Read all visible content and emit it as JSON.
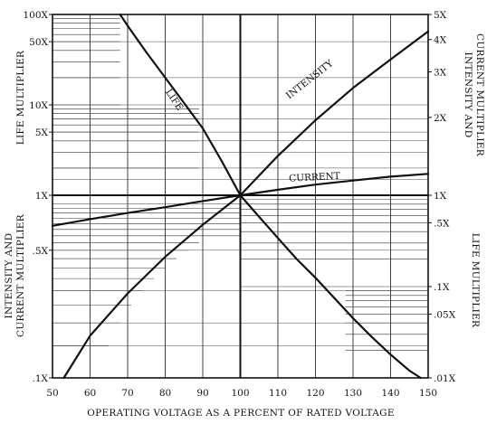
{
  "chart_data": {
    "type": "line",
    "title": "",
    "xlabel": "OPERATING VOLTAGE AS A PERCENT OF RATED VOLTAGE",
    "xlim": [
      50,
      150
    ],
    "x_ticks": [
      "50",
      "60",
      "70",
      "80",
      "90",
      "100",
      "110",
      "120",
      "130",
      "140",
      "150"
    ],
    "left_upper_axis": {
      "title": "LIFE MULTIPLIER",
      "ticks": [
        {
          "label": "100X",
          "value": 100
        },
        {
          "label": "50X",
          "value": 50
        },
        {
          "label": "10X",
          "value": 10
        },
        {
          "label": "5X",
          "value": 5
        },
        {
          "label": "1X",
          "value": 1
        }
      ]
    },
    "left_lower_axis": {
      "title_line1": "INTENSITY AND",
      "title_line2": "CURRENT MULTIPLIER",
      "ticks": [
        {
          "label": ".5X",
          "value": 0.5
        },
        {
          "label": ".1X",
          "value": 0.1
        }
      ]
    },
    "right_upper_axis": {
      "title_line1": "INTENSITY AND",
      "title_line2": "CURRENT MULTIPLIER",
      "ticks": [
        {
          "label": "5X",
          "value": 5
        },
        {
          "label": "4X",
          "value": 4
        },
        {
          "label": "3X",
          "value": 3
        },
        {
          "label": "2X",
          "value": 2
        },
        {
          "label": "1X",
          "value": 1
        }
      ]
    },
    "right_lower_axis": {
      "title": "LIFE MULTIPLIER",
      "ticks": [
        {
          "label": ".5X",
          "value": 0.5
        },
        {
          "label": ".1X",
          "value": 0.1
        },
        {
          "label": ".05X",
          "value": 0.05
        },
        {
          "label": ".01X",
          "value": 0.01
        }
      ]
    },
    "series": [
      {
        "name": "LIFE",
        "x": [
          68,
          70,
          75,
          80,
          85,
          90,
          95,
          100,
          105,
          110,
          115,
          120,
          125,
          130,
          135,
          140,
          145,
          148
        ],
        "y": [
          100,
          75,
          38,
          20,
          10.5,
          5.5,
          2.4,
          1,
          0.58,
          0.34,
          0.2,
          0.125,
          0.075,
          0.045,
          0.028,
          0.018,
          0.012,
          0.01
        ]
      },
      {
        "name": "INTENSITY",
        "x": [
          53,
          60,
          70,
          80,
          90,
          100,
          110,
          120,
          130,
          140,
          150
        ],
        "y": [
          0.1,
          0.17,
          0.29,
          0.46,
          0.69,
          1,
          1.42,
          1.95,
          2.6,
          3.35,
          4.3
        ]
      },
      {
        "name": "CURRENT",
        "x": [
          50,
          60,
          70,
          80,
          90,
          100,
          110,
          120,
          130,
          140,
          150
        ],
        "y": [
          0.68,
          0.74,
          0.8,
          0.86,
          0.93,
          1,
          1.05,
          1.1,
          1.14,
          1.18,
          1.21
        ]
      }
    ],
    "grid": true
  }
}
